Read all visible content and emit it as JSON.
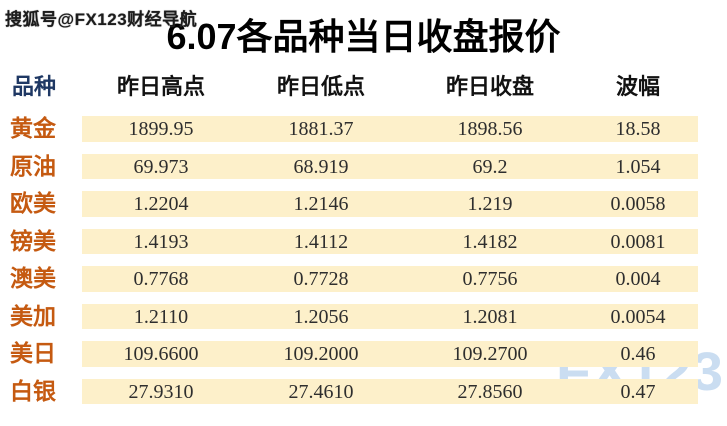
{
  "watermark_top": "搜狐号@FX123财经导航",
  "title": "6.07各品种当日收盘报价",
  "watermark_logo": "FX123",
  "colors": {
    "stripe": "#FDF0CA",
    "label_orange": "#C55A11",
    "header_first_navy": "#1F3864",
    "header_black": "#121212",
    "value_text": "#2E2E2E",
    "logo_blue": "#CADDF1",
    "title_black": "#000000"
  },
  "table": {
    "headers": [
      "品种",
      "昨日高点",
      "昨日低点",
      "昨日收盘",
      "波幅"
    ],
    "rows": [
      {
        "name": "黄金",
        "high": "1899.95",
        "low": "1881.37",
        "close": "1898.56",
        "range": "18.58"
      },
      {
        "name": "原油",
        "high": "69.973",
        "low": "68.919",
        "close": "69.2",
        "range": "1.054"
      },
      {
        "name": "欧美",
        "high": "1.2204",
        "low": "1.2146",
        "close": "1.219",
        "range": "0.0058"
      },
      {
        "name": "镑美",
        "high": "1.4193",
        "low": "1.4112",
        "close": "1.4182",
        "range": "0.0081"
      },
      {
        "name": "澳美",
        "high": "0.7768",
        "low": "0.7728",
        "close": "0.7756",
        "range": "0.004"
      },
      {
        "name": "美加",
        "high": "1.2110",
        "low": "1.2056",
        "close": "1.2081",
        "range": "0.0054"
      },
      {
        "name": "美日",
        "high": "109.6600",
        "low": "109.2000",
        "close": "109.2700",
        "range": "0.46"
      },
      {
        "name": "白银",
        "high": "27.9310",
        "low": "27.4610",
        "close": "27.8560",
        "range": "0.47"
      }
    ]
  }
}
